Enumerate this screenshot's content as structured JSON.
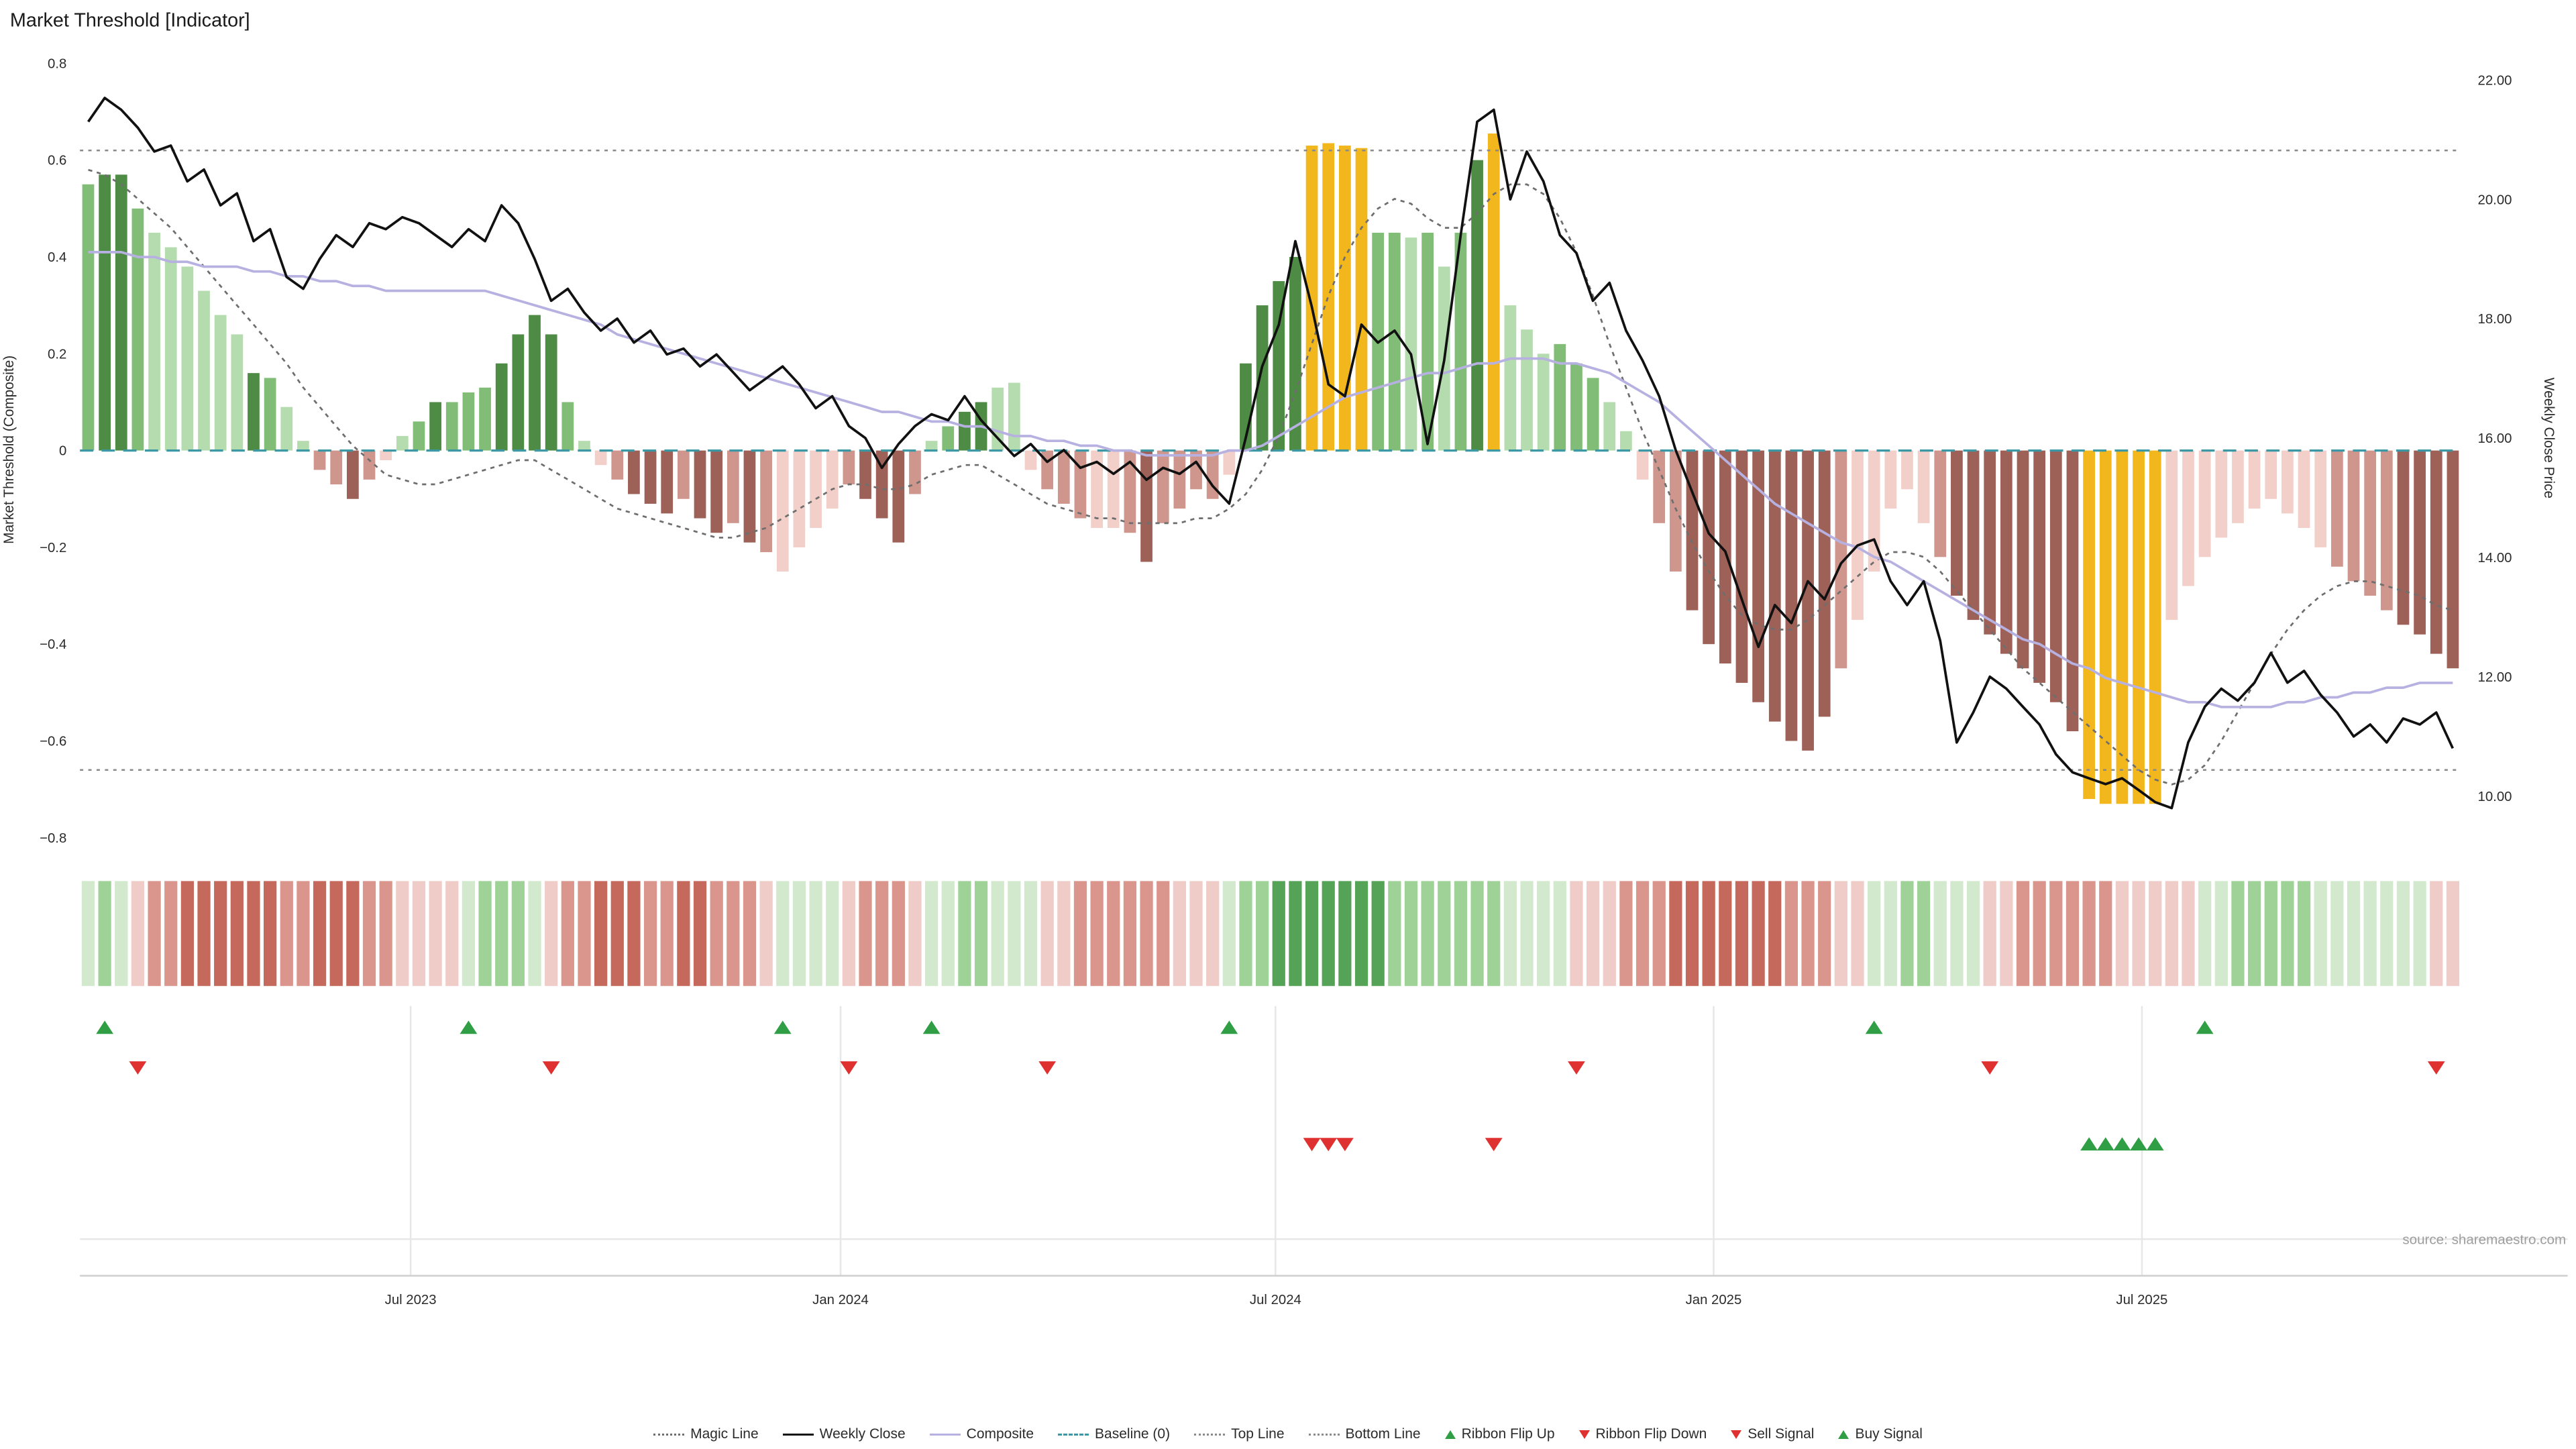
{
  "chart_data": {
    "type": "bar",
    "title": "Market Threshold [Indicator]",
    "source": "source: sharemaestro.com",
    "left_axis": {
      "label": "Market Threshold (Composite)",
      "ticks": [
        0.8,
        0.6,
        0.4,
        0.2,
        0,
        -0.2,
        -0.4,
        -0.6,
        -0.8
      ],
      "tick_labels": [
        "0.8",
        "0.6",
        "0.4",
        "0.2",
        "0",
        "−0.2",
        "−0.4",
        "−0.6",
        "−0.8"
      ],
      "range": [
        -0.85,
        0.85
      ]
    },
    "right_axis": {
      "label": "Weekly Close Price",
      "tick_values": [
        22,
        20,
        18,
        16,
        14,
        12,
        10
      ],
      "ticks": [
        "22.00",
        "20.00",
        "18.00",
        "16.00",
        "14.00",
        "12.00",
        "10.00"
      ]
    },
    "x_axis": {
      "tick_labels": [
        "Jul 2023",
        "Jan 2024",
        "Jul 2024",
        "Jan 2025",
        "Jul 2025"
      ],
      "tick_weeks": [
        19.5,
        45.5,
        71.8,
        98.3,
        124.2
      ]
    },
    "reference_lines": {
      "top_line": 0.62,
      "bottom_line": -0.66,
      "baseline": 0
    },
    "bars": {
      "name": "Market Threshold histogram",
      "values": [
        0.55,
        0.57,
        0.57,
        0.5,
        0.45,
        0.42,
        0.38,
        0.33,
        0.28,
        0.24,
        0.16,
        0.15,
        0.09,
        0.02,
        -0.04,
        -0.07,
        -0.1,
        -0.06,
        -0.02,
        0.03,
        0.06,
        0.1,
        0.1,
        0.12,
        0.13,
        0.18,
        0.24,
        0.28,
        0.24,
        0.1,
        0.02,
        -0.03,
        -0.06,
        -0.09,
        -0.11,
        -0.13,
        -0.1,
        -0.14,
        -0.17,
        -0.15,
        -0.19,
        -0.21,
        -0.25,
        -0.2,
        -0.16,
        -0.12,
        -0.07,
        -0.1,
        -0.14,
        -0.19,
        -0.09,
        0.02,
        0.05,
        0.08,
        0.1,
        0.13,
        0.14,
        -0.04,
        -0.08,
        -0.11,
        -0.14,
        -0.16,
        -0.16,
        -0.17,
        -0.23,
        -0.15,
        -0.12,
        -0.08,
        -0.1,
        -0.05,
        0.18,
        0.3,
        0.35,
        0.4,
        0.63,
        0.635,
        0.63,
        0.625,
        0.45,
        0.45,
        0.44,
        0.45,
        0.38,
        0.45,
        0.6,
        0.655,
        0.3,
        0.25,
        0.2,
        0.22,
        0.18,
        0.15,
        0.1,
        0.04,
        -0.06,
        -0.15,
        -0.25,
        -0.33,
        -0.4,
        -0.44,
        -0.48,
        -0.52,
        -0.56,
        -0.6,
        -0.62,
        -0.55,
        -0.45,
        -0.35,
        -0.25,
        -0.12,
        -0.08,
        -0.15,
        -0.22,
        -0.3,
        -0.35,
        -0.38,
        -0.42,
        -0.45,
        -0.48,
        -0.52,
        -0.58,
        -0.72,
        -0.73,
        -0.73,
        -0.73,
        -0.73,
        -0.35,
        -0.28,
        -0.22,
        -0.18,
        -0.15,
        -0.12,
        -0.1,
        -0.13,
        -0.16,
        -0.2,
        -0.24,
        -0.27,
        -0.3,
        -0.33,
        -0.36,
        -0.38,
        -0.42,
        -0.45
      ],
      "colors": [
        "mg",
        "dg",
        "dg",
        "mg",
        "lg",
        "lg",
        "lg",
        "lg",
        "lg",
        "lg",
        "dg",
        "mg",
        "lg",
        "lg",
        "mp",
        "mp",
        "dr",
        "mp",
        "lp",
        "lg",
        "mg",
        "dg",
        "mg",
        "mg",
        "mg",
        "dg",
        "dg",
        "dg",
        "dg",
        "mg",
        "lg",
        "lp",
        "mp",
        "dr",
        "dr",
        "dr",
        "mp",
        "dr",
        "dr",
        "mp",
        "dr",
        "mp",
        "lp",
        "lp",
        "lp",
        "lp",
        "mp",
        "dr",
        "dr",
        "dr",
        "mp",
        "lg",
        "mg",
        "dg",
        "dg",
        "lg",
        "lg",
        "lp",
        "mp",
        "mp",
        "mp",
        "lp",
        "lp",
        "mp",
        "dr",
        "mp",
        "mp",
        "mp",
        "mp",
        "lp",
        "dg",
        "dg",
        "dg",
        "dg",
        "or",
        "or",
        "or",
        "or",
        "mg",
        "mg",
        "lg",
        "mg",
        "lg",
        "mg",
        "dg",
        "or",
        "lg",
        "lg",
        "lg",
        "mg",
        "mg",
        "mg",
        "lg",
        "lg",
        "lp",
        "mp",
        "mp",
        "dr",
        "dr",
        "dr",
        "dr",
        "dr",
        "dr",
        "dr",
        "dr",
        "dr",
        "mp",
        "lp",
        "lp",
        "lp",
        "lp",
        "lp",
        "mp",
        "dr",
        "dr",
        "dr",
        "dr",
        "dr",
        "dr",
        "dr",
        "dr",
        "or",
        "or",
        "or",
        "or",
        "or",
        "lp",
        "lp",
        "lp",
        "lp",
        "lp",
        "lp",
        "lp",
        "lp",
        "lp",
        "lp",
        "mp",
        "mp",
        "mp",
        "mp",
        "dr",
        "dr",
        "dr",
        "dr"
      ]
    },
    "series": {
      "weekly_close": [
        21.3,
        21.7,
        21.5,
        21.2,
        20.8,
        20.9,
        20.3,
        20.5,
        19.9,
        20.1,
        19.3,
        19.5,
        18.7,
        18.5,
        19.0,
        19.4,
        19.2,
        19.6,
        19.5,
        19.7,
        19.6,
        19.4,
        19.2,
        19.5,
        19.3,
        19.9,
        19.6,
        19.0,
        18.3,
        18.5,
        18.1,
        17.8,
        18.0,
        17.6,
        17.8,
        17.4,
        17.5,
        17.2,
        17.4,
        17.1,
        16.8,
        17.0,
        17.2,
        16.9,
        16.5,
        16.7,
        16.2,
        16.0,
        15.5,
        15.9,
        16.2,
        16.4,
        16.3,
        16.7,
        16.3,
        16.0,
        15.7,
        15.9,
        15.6,
        15.8,
        15.5,
        15.6,
        15.4,
        15.6,
        15.3,
        15.5,
        15.4,
        15.6,
        15.2,
        14.9,
        16.0,
        17.2,
        17.9,
        19.3,
        18.2,
        16.9,
        16.7,
        17.9,
        17.6,
        17.8,
        17.4,
        15.9,
        17.3,
        19.4,
        21.3,
        21.5,
        20.0,
        20.8,
        20.3,
        19.4,
        19.1,
        18.3,
        18.6,
        17.8,
        17.3,
        16.7,
        15.8,
        15.1,
        14.4,
        14.1,
        13.3,
        12.5,
        13.2,
        12.9,
        13.6,
        13.3,
        13.9,
        14.2,
        14.3,
        13.6,
        13.2,
        13.6,
        12.6,
        10.9,
        11.4,
        12.0,
        11.8,
        11.5,
        11.2,
        10.7,
        10.4,
        10.3,
        10.2,
        10.3,
        10.1,
        9.9,
        9.8,
        10.9,
        11.5,
        11.8,
        11.6,
        11.9,
        12.4,
        11.9,
        12.1,
        11.7,
        11.4,
        11.0,
        11.2,
        10.9,
        11.3,
        11.2,
        11.4,
        10.8
      ],
      "magic_line": [
        0.58,
        0.57,
        0.55,
        0.52,
        0.49,
        0.46,
        0.42,
        0.38,
        0.34,
        0.3,
        0.26,
        0.22,
        0.18,
        0.13,
        0.09,
        0.05,
        0.01,
        -0.02,
        -0.05,
        -0.06,
        -0.07,
        -0.07,
        -0.06,
        -0.05,
        -0.04,
        -0.03,
        -0.02,
        -0.02,
        -0.04,
        -0.06,
        -0.08,
        -0.1,
        -0.12,
        -0.13,
        -0.14,
        -0.15,
        -0.16,
        -0.17,
        -0.18,
        -0.18,
        -0.17,
        -0.16,
        -0.14,
        -0.12,
        -0.1,
        -0.08,
        -0.07,
        -0.07,
        -0.08,
        -0.08,
        -0.07,
        -0.05,
        -0.04,
        -0.03,
        -0.03,
        -0.05,
        -0.07,
        -0.09,
        -0.11,
        -0.12,
        -0.13,
        -0.14,
        -0.14,
        -0.15,
        -0.15,
        -0.15,
        -0.15,
        -0.14,
        -0.14,
        -0.12,
        -0.09,
        -0.04,
        0.03,
        0.12,
        0.22,
        0.32,
        0.4,
        0.46,
        0.5,
        0.52,
        0.51,
        0.48,
        0.46,
        0.46,
        0.49,
        0.53,
        0.55,
        0.55,
        0.53,
        0.48,
        0.41,
        0.32,
        0.22,
        0.13,
        0.04,
        -0.04,
        -0.12,
        -0.19,
        -0.25,
        -0.3,
        -0.34,
        -0.36,
        -0.37,
        -0.37,
        -0.35,
        -0.32,
        -0.29,
        -0.26,
        -0.23,
        -0.21,
        -0.21,
        -0.22,
        -0.25,
        -0.29,
        -0.33,
        -0.37,
        -0.41,
        -0.45,
        -0.48,
        -0.51,
        -0.54,
        -0.57,
        -0.6,
        -0.63,
        -0.66,
        -0.68,
        -0.69,
        -0.68,
        -0.65,
        -0.6,
        -0.54,
        -0.48,
        -0.42,
        -0.37,
        -0.33,
        -0.3,
        -0.28,
        -0.27,
        -0.27,
        -0.28,
        -0.29,
        -0.3,
        -0.32,
        -0.33
      ],
      "composite": [
        0.41,
        0.41,
        0.41,
        0.4,
        0.4,
        0.39,
        0.39,
        0.38,
        0.38,
        0.38,
        0.37,
        0.37,
        0.36,
        0.36,
        0.35,
        0.35,
        0.34,
        0.34,
        0.33,
        0.33,
        0.33,
        0.33,
        0.33,
        0.33,
        0.33,
        0.32,
        0.31,
        0.3,
        0.29,
        0.28,
        0.27,
        0.26,
        0.24,
        0.23,
        0.22,
        0.21,
        0.2,
        0.19,
        0.18,
        0.17,
        0.16,
        0.15,
        0.14,
        0.13,
        0.12,
        0.11,
        0.1,
        0.09,
        0.08,
        0.08,
        0.07,
        0.06,
        0.06,
        0.05,
        0.05,
        0.04,
        0.03,
        0.03,
        0.02,
        0.02,
        0.01,
        0.01,
        0.0,
        0.0,
        -0.01,
        -0.01,
        -0.01,
        -0.01,
        -0.01,
        0.0,
        0.0,
        0.01,
        0.03,
        0.05,
        0.07,
        0.09,
        0.11,
        0.12,
        0.13,
        0.14,
        0.15,
        0.16,
        0.16,
        0.17,
        0.18,
        0.18,
        0.19,
        0.19,
        0.19,
        0.18,
        0.18,
        0.17,
        0.16,
        0.14,
        0.12,
        0.1,
        0.07,
        0.04,
        0.01,
        -0.02,
        -0.05,
        -0.08,
        -0.11,
        -0.13,
        -0.15,
        -0.17,
        -0.19,
        -0.2,
        -0.22,
        -0.23,
        -0.25,
        -0.27,
        -0.29,
        -0.31,
        -0.33,
        -0.35,
        -0.37,
        -0.39,
        -0.4,
        -0.42,
        -0.44,
        -0.45,
        -0.47,
        -0.48,
        -0.49,
        -0.5,
        -0.51,
        -0.52,
        -0.52,
        -0.53,
        -0.53,
        -0.53,
        -0.53,
        -0.52,
        -0.52,
        -0.51,
        -0.51,
        -0.5,
        -0.5,
        -0.49,
        -0.49,
        -0.48,
        -0.48,
        -0.48
      ]
    },
    "ribbon": [
      "g1",
      "g2",
      "g1",
      "r1",
      "r2",
      "r2",
      "r3",
      "r3",
      "r3",
      "r3",
      "r3",
      "r3",
      "r2",
      "r2",
      "r3",
      "r3",
      "r3",
      "r2",
      "r2",
      "r1",
      "r1",
      "r1",
      "r1",
      "g1",
      "g2",
      "g2",
      "g2",
      "g1",
      "r1",
      "r2",
      "r2",
      "r3",
      "r3",
      "r3",
      "r2",
      "r2",
      "r3",
      "r3",
      "r2",
      "r2",
      "r2",
      "r1",
      "g1",
      "g1",
      "g1",
      "g1",
      "r1",
      "r2",
      "r2",
      "r2",
      "r1",
      "g1",
      "g1",
      "g2",
      "g2",
      "g1",
      "g1",
      "g1",
      "r1",
      "r1",
      "r2",
      "r2",
      "r2",
      "r2",
      "r2",
      "r2",
      "r1",
      "r1",
      "r1",
      "g1",
      "g2",
      "g2",
      "g3",
      "g3",
      "g3",
      "g3",
      "g3",
      "g3",
      "g3",
      "g2",
      "g2",
      "g2",
      "g2",
      "g2",
      "g2",
      "g2",
      "g1",
      "g1",
      "g1",
      "g1",
      "r1",
      "r1",
      "r1",
      "r2",
      "r2",
      "r2",
      "r3",
      "r3",
      "r3",
      "r3",
      "r3",
      "r3",
      "r3",
      "r2",
      "r2",
      "r2",
      "r1",
      "r1",
      "g1",
      "g1",
      "g2",
      "g2",
      "g1",
      "g1",
      "g1",
      "r1",
      "r1",
      "r2",
      "r2",
      "r2",
      "r2",
      "r2",
      "r2",
      "r1",
      "r1",
      "r1",
      "r1",
      "r1",
      "g1",
      "g1",
      "g2",
      "g2",
      "g2",
      "g2",
      "g2",
      "g1",
      "g1",
      "g1",
      "g1",
      "g1",
      "g1",
      "g1",
      "r1",
      "r1"
    ],
    "signals": {
      "ribbon_flip_up_weeks": [
        1,
        23,
        42,
        51,
        69,
        108,
        128
      ],
      "ribbon_flip_down_weeks": [
        3,
        28,
        46,
        58,
        90,
        115,
        142
      ],
      "sell_signal_weeks": [
        74,
        75,
        76,
        85
      ],
      "buy_signal_weeks": [
        121,
        122,
        123,
        124,
        125
      ]
    },
    "colors": {
      "bar_palette": {
        "dg": "#4e8b44",
        "mg": "#81bd77",
        "lg": "#b5dcae",
        "or": "#f2b71d",
        "lp": "#f2cfc9",
        "mp": "#cf968d",
        "dr": "#9d6158"
      },
      "ribbon_palette": {
        "g1": "#d2e9cd",
        "g2": "#9ed297",
        "g3": "#55a356",
        "r1": "#efccc7",
        "r2": "#da968c",
        "r3": "#c4695c"
      },
      "weekly_close": "#111111",
      "magic_line": "#6e6e6e",
      "composite": "#b6b1e0",
      "baseline": "#3d98a5",
      "top_bottom_line": "#8a8a8a",
      "buy": "#2f9e44",
      "sell": "#e03131",
      "grid": "#e7e7e7",
      "axis_line": "#cfcfcf"
    }
  },
  "legend": {
    "items": [
      {
        "label": "Magic Line"
      },
      {
        "label": "Weekly Close"
      },
      {
        "label": "Composite"
      },
      {
        "label": "Baseline (0)"
      },
      {
        "label": "Top Line"
      },
      {
        "label": "Bottom Line"
      },
      {
        "label": "Ribbon Flip Up"
      },
      {
        "label": "Ribbon Flip Down"
      },
      {
        "label": "Sell Signal"
      },
      {
        "label": "Buy Signal"
      }
    ]
  }
}
